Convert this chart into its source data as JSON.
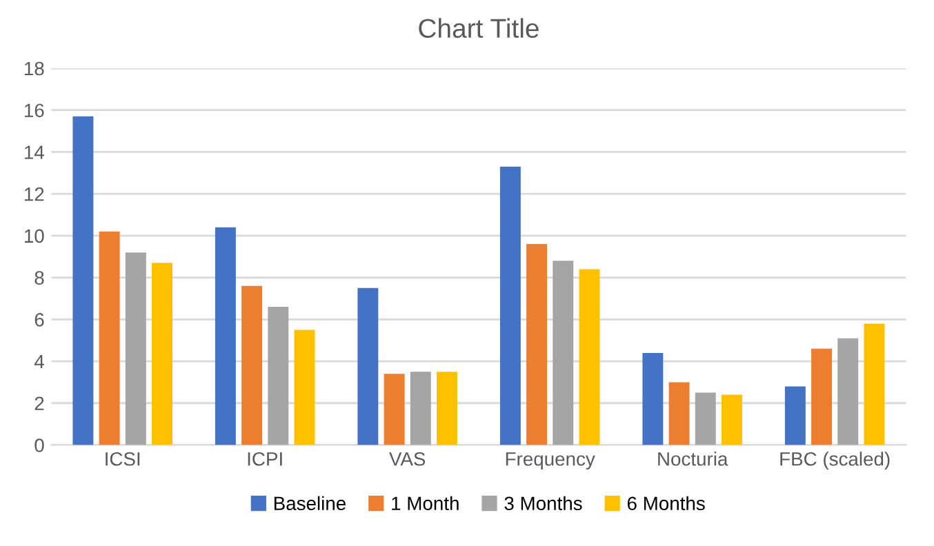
{
  "chart_data": {
    "type": "bar",
    "title": "Chart Title",
    "categories": [
      "ICSI",
      "ICPI",
      "VAS",
      "Frequency",
      "Nocturia",
      "FBC (scaled)"
    ],
    "series": [
      {
        "name": "Baseline",
        "color": "#4472c4",
        "values": [
          15.7,
          10.4,
          7.5,
          13.3,
          4.4,
          2.8
        ]
      },
      {
        "name": "1 Month",
        "color": "#ed7d31",
        "values": [
          10.2,
          7.6,
          3.4,
          9.6,
          3.0,
          4.6
        ]
      },
      {
        "name": "3 Months",
        "color": "#a5a5a5",
        "values": [
          9.2,
          6.6,
          3.5,
          8.8,
          2.5,
          5.1
        ]
      },
      {
        "name": "6 Months",
        "color": "#ffc000",
        "values": [
          8.7,
          5.5,
          3.5,
          8.4,
          2.4,
          5.8
        ]
      }
    ],
    "ylim": [
      0,
      18
    ],
    "yticks": [
      0,
      2,
      4,
      6,
      8,
      10,
      12,
      14,
      16,
      18
    ],
    "grid": "y",
    "legend": "bottom"
  }
}
